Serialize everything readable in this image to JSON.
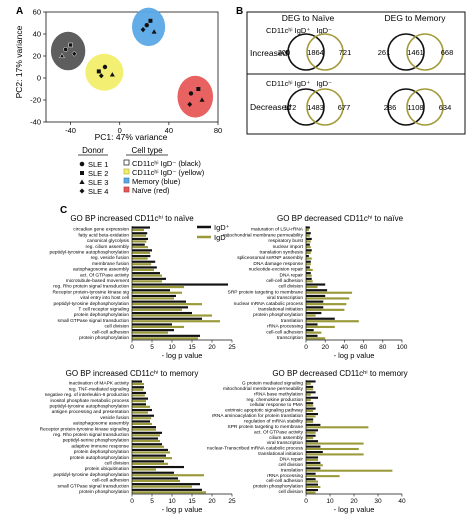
{
  "figure": {
    "panel_a_letter": "A",
    "panel_b_letter": "B",
    "panel_c_letter": "C"
  },
  "panel_a": {
    "xlabel": "PC1: 47% variance",
    "ylabel": "PC2: 17% variance",
    "legend": {
      "donor_title": "Donor",
      "donors": [
        "SLE 1",
        "SLE 2",
        "SLE 3",
        "SLE 4"
      ],
      "celltype_title": "Cell type",
      "celltype_lines": [
        "CD11cʰⁱ IgD⁻ (black)",
        "CD11cʰⁱ IgD⁻ (yellow)",
        "Memory (blue)",
        "Naïve (red)"
      ]
    }
  },
  "panel_b": {
    "title_left": "DEG to Naïve",
    "title_right": "DEG to Memory",
    "set_label": "CD11cʰⁱ IgD⁺",
    "set_label_right_suffix": "IgD⁻",
    "rows": [
      {
        "label": "Increased",
        "naive": [
          "200",
          "1864",
          "721"
        ],
        "memory": [
          "261",
          "1461",
          "668"
        ]
      },
      {
        "label": "Decreased",
        "naive": [
          "172",
          "1483",
          "677"
        ],
        "memory": [
          "286",
          "1108",
          "634"
        ]
      }
    ]
  },
  "panel_c": {
    "legend": [
      "IgD⁺",
      "IgD⁻"
    ],
    "colors": {
      "igd_plus": "#111111",
      "igd_minus": "#9a9a3a"
    },
    "xlabel": "- log p value"
  },
  "chart_data": [
    {
      "type": "scatter",
      "title": "",
      "xlabel": "PC1: 47% variance",
      "ylabel": "PC2: 17% variance",
      "xlim": [
        -60,
        80
      ],
      "ylim": [
        -40,
        60
      ],
      "xticks": [
        -40,
        0,
        40,
        80
      ],
      "yticks": [
        -40,
        -20,
        0,
        20,
        40,
        60
      ],
      "groups": [
        {
          "name": "CD11c hi IgD- (black)",
          "color": "#555555",
          "points": [
            [
              -44,
              26
            ],
            [
              -40,
              30
            ],
            [
              -47,
              20
            ],
            [
              -37,
              22
            ]
          ]
        },
        {
          "name": "CD11c hi IgD- (yellow)",
          "color": "#f2ee6b",
          "points": [
            [
              -12,
              10
            ],
            [
              -17,
              6
            ],
            [
              -6,
              3
            ],
            [
              -15,
              2
            ]
          ]
        },
        {
          "name": "Memory (blue)",
          "color": "#5aa9e6",
          "points": [
            [
              22,
              48
            ],
            [
              25,
              52
            ],
            [
              28,
              42
            ],
            [
              19,
              44
            ]
          ]
        },
        {
          "name": "Naive (red)",
          "color": "#e85a5a",
          "points": [
            [
              58,
              -14
            ],
            [
              64,
              -10
            ],
            [
              67,
              -20
            ],
            [
              57,
              -24
            ]
          ]
        }
      ]
    },
    {
      "type": "bar",
      "title": "GO BP increased CD11cʰⁱ to naïve",
      "orientation": "horizontal",
      "xlim": [
        0,
        25
      ],
      "xticks": [
        0,
        5,
        10,
        15,
        20,
        25
      ],
      "categories": [
        "circadian gene expression",
        "fatty acid beta-oxidation",
        "canonical glycolysis",
        "reg. cilium assembly",
        "peptidyl-tyrosine autophosphorylation",
        "reg. vesicle fusion",
        "membrane fusion",
        "autophagosome assembly",
        "act. Of GTPase activity",
        "microtubule-based movement",
        "reg. Rho protein signal transduction",
        "Receptor protein-tyrosine kinase sig",
        "viral entry into host cell",
        "peptidyl-tyrosine dephosphorylation",
        "T cell receptor signaling",
        "protein dephosphorylation",
        "small GTPase signal transduction",
        "cell division",
        "cell-cell adhesion",
        "protein phosphorylation"
      ],
      "series": [
        {
          "name": "IgD⁺",
          "values": [
            4.5,
            3.8,
            4.0,
            3.2,
            5.0,
            4.6,
            5.8,
            6.2,
            7.0,
            8.5,
            24.0,
            9.5,
            11.0,
            13.5,
            14.0,
            15.0,
            17.5,
            10.0,
            10.5,
            17.0
          ]
        },
        {
          "name": "IgD⁻",
          "values": [
            3.0,
            3.5,
            3.6,
            4.0,
            4.5,
            3.9,
            4.8,
            5.5,
            7.5,
            7.5,
            13.0,
            12.5,
            10.5,
            17.5,
            12.5,
            20.0,
            22.0,
            13.0,
            9.0,
            16.5
          ]
        }
      ]
    },
    {
      "type": "bar",
      "title": "GO BP decreased CD11cʰⁱ to naïve",
      "orientation": "horizontal",
      "xlim": [
        0,
        100
      ],
      "xticks": [
        0,
        20,
        40,
        60,
        80,
        100
      ],
      "categories": [
        "maturation of LSU-rRNA",
        "mitochondrial membrane permeability",
        "respiratory burst",
        "nuclear import",
        "translation synthesis",
        "spliceosomal snRNP assembly",
        "DNA damage response",
        "nucleotide-excision repair",
        "DNA repair",
        "cell-cell adhesion",
        "cell division",
        "SRP protein targeting to membrane",
        "viral transcription",
        "nuclear mRNA catabolic process",
        "translational initiation",
        "protein phosphorylation",
        "translation",
        "rRNA processing",
        "cell-cell adhesion",
        "transcription"
      ],
      "series": [
        {
          "name": "IgD⁺",
          "values": [
            4,
            5,
            6,
            4,
            6,
            3,
            5,
            4,
            5,
            6,
            20,
            22,
            20,
            18,
            18,
            16,
            30,
            12,
            8,
            12
          ]
        },
        {
          "name": "IgD⁻",
          "values": [
            3,
            4,
            5,
            5,
            5,
            6,
            5,
            7,
            6,
            7,
            12,
            48,
            45,
            42,
            40,
            10,
            55,
            30,
            16,
            20
          ]
        }
      ]
    },
    {
      "type": "bar",
      "title": "GO BP increased CD11cʰⁱ to memory",
      "orientation": "horizontal",
      "xlim": [
        0,
        25
      ],
      "xticks": [
        0,
        5,
        10,
        15,
        20,
        25
      ],
      "categories": [
        "inactivation of MAPK activity",
        "reg. TNF-mediated signaling",
        "negative reg. of interleukin-6 production",
        "inositol phosphate metabolic process",
        "peptidyl-tyrosine autophosphorylation",
        "antigen processing and presentation",
        "vesicle fusion",
        "autophagosome assembly",
        "Receptor protein-tyrosine kinase signaling",
        "reg. Rho protein signal transduction",
        "peptidyl-serine phosphorylation",
        "adaptive immune response",
        "protein dephosphorylation",
        "protein autophosphorylation",
        "cell division",
        "protein ubiquitination",
        "peptidyl-tyrosine dephosphorylation",
        "cell-cell adhesion",
        "small GTPase signal transduction",
        "protein phosphorylation"
      ],
      "series": [
        {
          "name": "IgD⁺",
          "values": [
            2.5,
            3.0,
            3.5,
            4.0,
            3.5,
            5.0,
            5.5,
            4.5,
            6.0,
            7.5,
            6.5,
            7.5,
            9.0,
            8.5,
            8.0,
            13.0,
            10.5,
            11.5,
            17.0,
            17.5
          ]
        },
        {
          "name": "IgD⁻",
          "values": [
            3.0,
            2.8,
            3.2,
            3.5,
            4.5,
            4.0,
            4.8,
            5.0,
            6.0,
            7.0,
            7.0,
            8.0,
            9.5,
            10.0,
            9.0,
            6.0,
            18.0,
            12.0,
            15.0,
            18.5
          ]
        }
      ]
    },
    {
      "type": "bar",
      "title": "GO BP decreased CD11cʰⁱ to memory",
      "orientation": "horizontal",
      "xlim": [
        0,
        40
      ],
      "xticks": [
        0,
        10,
        20,
        30,
        40
      ],
      "categories": [
        "G protein mediated signaling",
        "mitochondrial membrane permeability",
        "rRNA base methylation",
        "reg. chemokine production",
        "cellular response to PMA",
        "extrinsic apoptotic signaling pathway",
        "rRNA aminoacylation for protein translation",
        "regulation of mRNA stability",
        "SPR protein targeting to membrane",
        "act. Of GTPase activity",
        "cilium assembly",
        "viral transcription",
        "nuclear-Transcribed mRNA catabolic process",
        "translational initiation",
        "DNA repair",
        "cell division",
        "translation",
        "rRNA processing",
        "cell-cell adhesion",
        "protein phosphorylation",
        "cell division"
      ],
      "series": [
        {
          "name": "IgD⁺",
          "values": [
            4,
            3,
            4,
            5,
            3,
            4,
            5,
            3,
            6,
            5,
            4,
            5,
            6,
            7,
            5,
            6,
            6,
            4,
            4,
            5,
            5
          ]
        },
        {
          "name": "IgD⁻",
          "values": [
            2,
            3,
            2,
            2,
            3,
            3,
            4,
            3,
            26,
            4,
            3,
            24,
            22,
            24,
            5,
            7,
            36,
            14,
            5,
            6,
            4
          ]
        }
      ]
    }
  ]
}
